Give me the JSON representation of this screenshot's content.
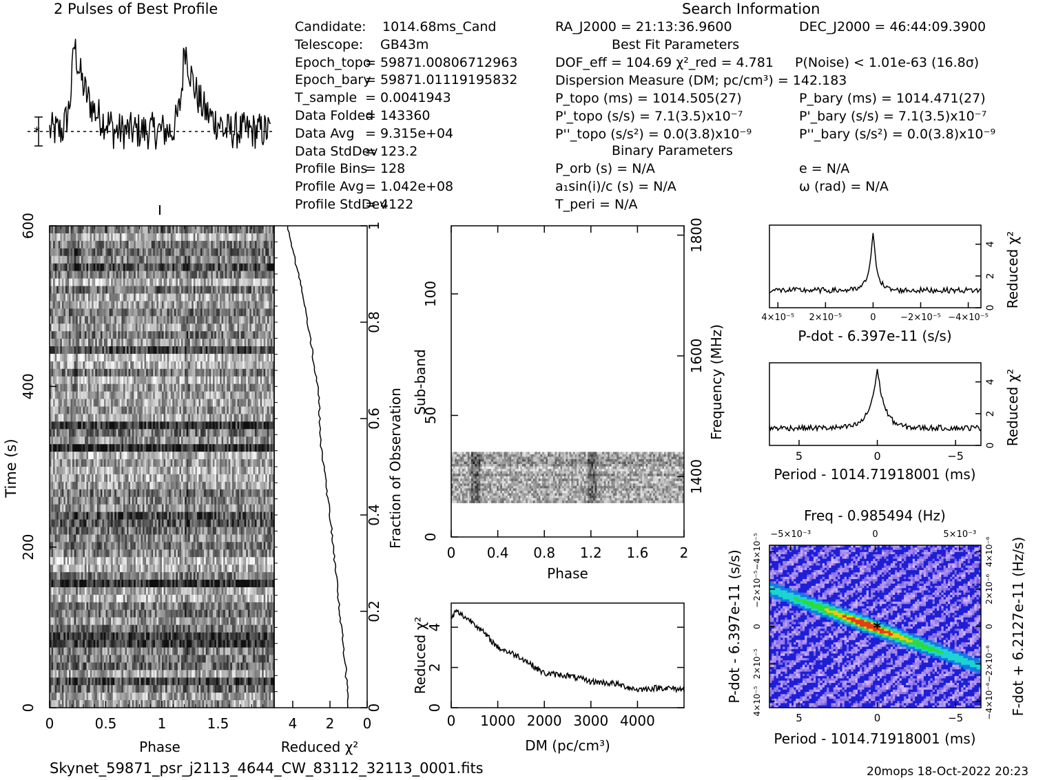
{
  "header": {
    "profile_title": "2 Pulses of Best Profile",
    "search_title": "Search Information",
    "best_fit_title": "Best Fit Parameters",
    "binary_title": "Binary Parameters"
  },
  "candidate_info": [
    {
      "label": "Candidate:",
      "value": "1014.68ms_Cand"
    },
    {
      "label": "Telescope:",
      "value": "GB43m"
    },
    {
      "label": "Epoch_topo",
      "value": "= 59871.00806712963"
    },
    {
      "label": "Epoch_bary",
      "value": "= 59871.01119195832"
    },
    {
      "label": "T_sample",
      "value": "=   0.0041943"
    },
    {
      "label": "Data Folded",
      "value": "=   143360"
    },
    {
      "label": "Data Avg",
      "value": "=   9.315e+04"
    },
    {
      "label": "Data StdDev",
      "value": "=   123.2"
    },
    {
      "label": "Profile Bins",
      "value": "=   128"
    },
    {
      "label": "Profile Avg",
      "value": "=   1.042e+08"
    },
    {
      "label": "Profile StdDev",
      "value": "=   4122"
    }
  ],
  "search_info": {
    "ra": "RA_J2000 = 21:13:36.9600",
    "dec": "DEC_J2000 = 46:44:09.3900",
    "dof": "DOF_eff = 104.69   χ²_red = 4.781",
    "pnoise": "P(Noise) < 1.01e-63   (16.8σ)",
    "dm": "Dispersion Measure (DM; pc/cm³) = 142.183",
    "p_topo": "P_topo (ms) =  1014.505(27)",
    "p_bary": "P_bary (ms) =  1014.471(27)",
    "pd_topo": "P'_topo (s/s) =  7.1(3.5)x10⁻⁷",
    "pd_bary": "P'_bary (s/s) =  7.1(3.5)x10⁻⁷",
    "pdd_topo": "P''_topo (s/s²) = 0.0(3.8)x10⁻⁹",
    "pdd_bary": "P''_bary (s/s²) = 0.0(3.8)x10⁻⁹",
    "porb": "P_orb (s) = N/A",
    "asini": "a₁sin(i)/c (s) = N/A",
    "tperi": "T_peri = N/A",
    "ecc": "e = N/A",
    "omega": "ω (rad) = N/A"
  },
  "axes": {
    "time_label": "Time (s)",
    "phase_label": "Phase",
    "redchi_label": "Reduced χ²",
    "fraction_label": "Fraction of Observation",
    "subband_label": "Sub-band",
    "frequency_label": "Frequency (MHz)",
    "dm_label": "DM (pc/cm³)",
    "pdot_label": "P-dot - 6.397e-11 (s/s)",
    "period_label": "Period - 1014.71918001 (ms)",
    "freq_label": "Freq - 0.985494 (Hz)",
    "pdot2d_label": "P-dot - 6.397e-11 (s/s)",
    "fdot_label": "F-dot + 6.2127e-11 (Hz/s)"
  },
  "footer": {
    "filename": "Skynet_59871_psr_j2113_4644_CW_83112_32113_0001.fits",
    "stamp": "20mops 18-Oct-2022 20:23"
  },
  "chart_data": [
    {
      "type": "line",
      "title": "2 Pulses of Best Profile",
      "x_range": [
        0,
        2
      ],
      "peaks_at_phase": [
        0.22,
        1.22
      ],
      "grid": false
    },
    {
      "type": "heatmap",
      "name": "time-phase",
      "xlabel": "Phase",
      "ylabel": "Time (s)",
      "x_ticks": [
        "0",
        "0.5",
        "1",
        "1.5"
      ],
      "y_ticks": [
        0,
        200,
        400,
        600
      ],
      "xlim": [
        0,
        2
      ],
      "ylim": [
        0,
        600
      ]
    },
    {
      "type": "line",
      "name": "cumulative reduced chi2",
      "xlabel": "Reduced χ²",
      "ylabel": "Fraction of Observation",
      "x_ticks": [
        4,
        2,
        0
      ],
      "y_ticks": [
        0,
        0.2,
        0.4,
        0.6,
        0.8,
        1
      ],
      "points": [
        [
          1.0,
          0
        ],
        [
          1.2,
          0.1
        ],
        [
          1.6,
          0.25
        ],
        [
          2.0,
          0.4
        ],
        [
          2.5,
          0.55
        ],
        [
          2.6,
          0.65
        ],
        [
          3.2,
          0.8
        ],
        [
          3.7,
          0.9
        ],
        [
          4.3,
          1.0
        ]
      ]
    },
    {
      "type": "heatmap",
      "name": "subband-phase",
      "xlabel": "Phase",
      "ylabel": "Sub-band",
      "x_ticks": [
        "0",
        "0.4",
        "0.8",
        "1.2",
        "1.6",
        "2"
      ],
      "y_ticks": [
        0,
        50,
        100
      ],
      "freq_ticks": [
        1400,
        1600,
        1800
      ],
      "band_range": [
        14,
        35
      ],
      "ylim": [
        0,
        128
      ]
    },
    {
      "type": "line",
      "name": "DM curve",
      "xlabel": "DM (pc/cm³)",
      "ylabel": "Reduced χ²",
      "x_ticks": [
        0,
        1000,
        2000,
        3000,
        4000
      ],
      "y_ticks": [
        0,
        2,
        4
      ],
      "xlim": [
        0,
        5000
      ],
      "ylim": [
        0,
        5.2
      ],
      "points": [
        [
          0,
          4.4
        ],
        [
          100,
          4.8
        ],
        [
          500,
          4.2
        ],
        [
          1000,
          3.0
        ],
        [
          1500,
          2.5
        ],
        [
          2000,
          1.7
        ],
        [
          2500,
          1.6
        ],
        [
          3000,
          1.3
        ],
        [
          3500,
          1.2
        ],
        [
          4000,
          0.9
        ],
        [
          4500,
          1.0
        ],
        [
          5000,
          0.9
        ]
      ]
    },
    {
      "type": "line",
      "name": "P-dot curve",
      "xlabel": "P-dot - 6.397e-11 (s/s)",
      "ylabel": "Reduced χ²",
      "x_ticks": [
        "4×10⁻⁵",
        "2×10⁻⁵",
        "0",
        "−2×10⁻⁵",
        "−4×10⁻⁵"
      ],
      "y_ticks": [
        0,
        2,
        4
      ],
      "ylim": [
        0,
        5.2
      ],
      "baseline": 1.1,
      "peak": 4.7
    },
    {
      "type": "line",
      "name": "Period curve",
      "xlabel": "Period - 1014.71918001 (ms)",
      "ylabel": "Reduced χ²",
      "x_ticks": [
        "5",
        "0",
        "−5"
      ],
      "y_ticks": [
        0,
        2,
        4
      ],
      "ylim": [
        0,
        5.2
      ],
      "baseline": 1.1,
      "peak": 4.8
    },
    {
      "type": "heatmap",
      "name": "P-Pdot plane",
      "xlabel": "Period - 1014.71918001 (ms)",
      "ylabel": "P-dot - 6.397e-11 (s/s)",
      "top_label": "Freq - 0.985494 (Hz)",
      "right_label": "F-dot + 6.2127e-11 (Hz/s)",
      "x_ticks": [
        "5",
        "0",
        "−5"
      ],
      "top_ticks": [
        "−5×10⁻³",
        "0",
        "5×10⁻³"
      ],
      "y_ticks": [
        "4×10⁻⁵",
        "2×10⁻⁵",
        "0",
        "−2×10⁻⁵",
        "−4×10⁻⁵"
      ],
      "right_ticks": [
        "−4×10⁻⁶",
        "−2×10⁻⁶",
        "0",
        "2×10⁻⁶",
        "4×10⁻⁶"
      ]
    }
  ]
}
